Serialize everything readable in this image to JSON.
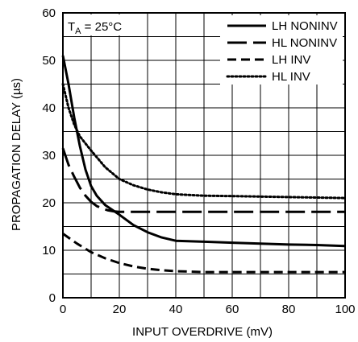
{
  "chart_data": {
    "type": "line",
    "xlabel": "INPUT OVERDRIVE (mV)",
    "ylabel": "PROPAGATION DELAY (µs)",
    "xlim": [
      0,
      100
    ],
    "ylim": [
      0,
      60
    ],
    "x_ticks": [
      "0",
      "20",
      "40",
      "60",
      "80",
      "100"
    ],
    "y_ticks": [
      "0",
      "10",
      "20",
      "30",
      "40",
      "50",
      "60"
    ],
    "grid": true,
    "legend_position": "top-right",
    "annotation": {
      "prefix": "T",
      "subscript": "A",
      "rest": " = 25°C"
    },
    "series": [
      {
        "name": "LH NONINV",
        "style": "solid",
        "x": [
          0,
          2,
          4,
          6,
          8,
          10,
          12,
          15,
          20,
          25,
          30,
          35,
          40,
          50,
          60,
          70,
          80,
          90,
          100
        ],
        "y": [
          51,
          45,
          38,
          32,
          27,
          23.5,
          21.5,
          19.5,
          17.5,
          15.3,
          13.8,
          12.7,
          12.0,
          11.8,
          11.6,
          11.4,
          11.2,
          11.1,
          10.9
        ]
      },
      {
        "name": "HL NONINV",
        "style": "long-dash",
        "x": [
          0,
          2,
          4,
          6,
          8,
          10,
          12,
          14,
          16,
          18,
          20,
          30,
          40,
          60,
          80,
          100
        ],
        "y": [
          31.5,
          28,
          25.5,
          23.2,
          21.5,
          20.2,
          19.3,
          18.8,
          18.4,
          18.2,
          18.1,
          18.1,
          18.1,
          18.1,
          18.1,
          18.1
        ]
      },
      {
        "name": "LH INV",
        "style": "dash",
        "x": [
          0,
          5,
          10,
          15,
          20,
          25,
          30,
          35,
          40,
          50,
          60,
          70,
          80,
          90,
          100
        ],
        "y": [
          13.5,
          11.4,
          9.6,
          8.3,
          7.3,
          6.6,
          6.1,
          5.8,
          5.6,
          5.4,
          5.4,
          5.4,
          5.4,
          5.4,
          5.4
        ]
      },
      {
        "name": "HL INV",
        "style": "dot",
        "x": [
          0,
          2,
          4,
          6,
          8,
          10,
          15,
          20,
          25,
          30,
          35,
          40,
          50,
          60,
          70,
          80,
          90,
          100
        ],
        "y": [
          45,
          40,
          36.5,
          34,
          32.5,
          31,
          27.5,
          25,
          23.7,
          22.8,
          22.2,
          21.8,
          21.5,
          21.4,
          21.3,
          21.2,
          21.1,
          21.0
        ]
      }
    ]
  }
}
